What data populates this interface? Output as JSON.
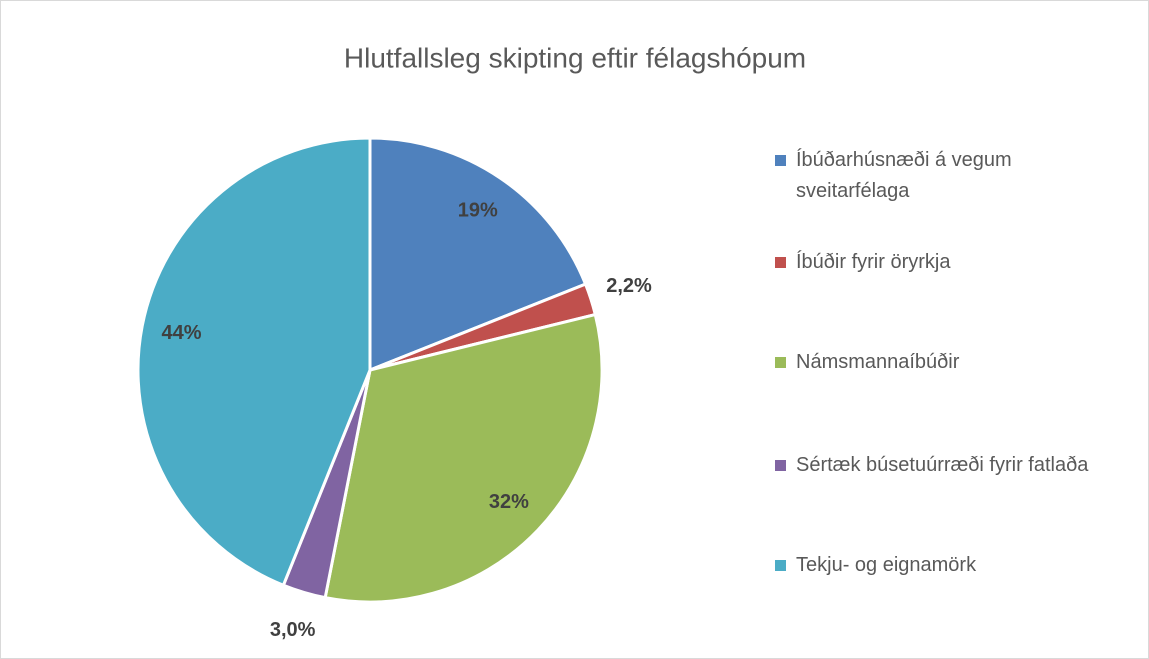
{
  "chart_data": {
    "type": "pie",
    "title": "Hlutfallsleg skipting eftir félagshópum",
    "categories": [
      "Íbúðarhúsnæði á vegum sveitarfélaga",
      "Íbúðir fyrir öryrkja",
      "Námsmannaíbúðir",
      "Sértæk búsetuúrræði fyrir fatlaða",
      "Tekju- og eignamörk"
    ],
    "values": [
      19,
      2.2,
      32,
      3.0,
      44
    ],
    "value_labels": [
      "19%",
      "2,2%",
      "32%",
      "3,0%",
      "44%"
    ],
    "colors": [
      "#4f81bd",
      "#c0504d",
      "#9bbb59",
      "#8064a2",
      "#4bacc6"
    ],
    "legend": "right"
  }
}
